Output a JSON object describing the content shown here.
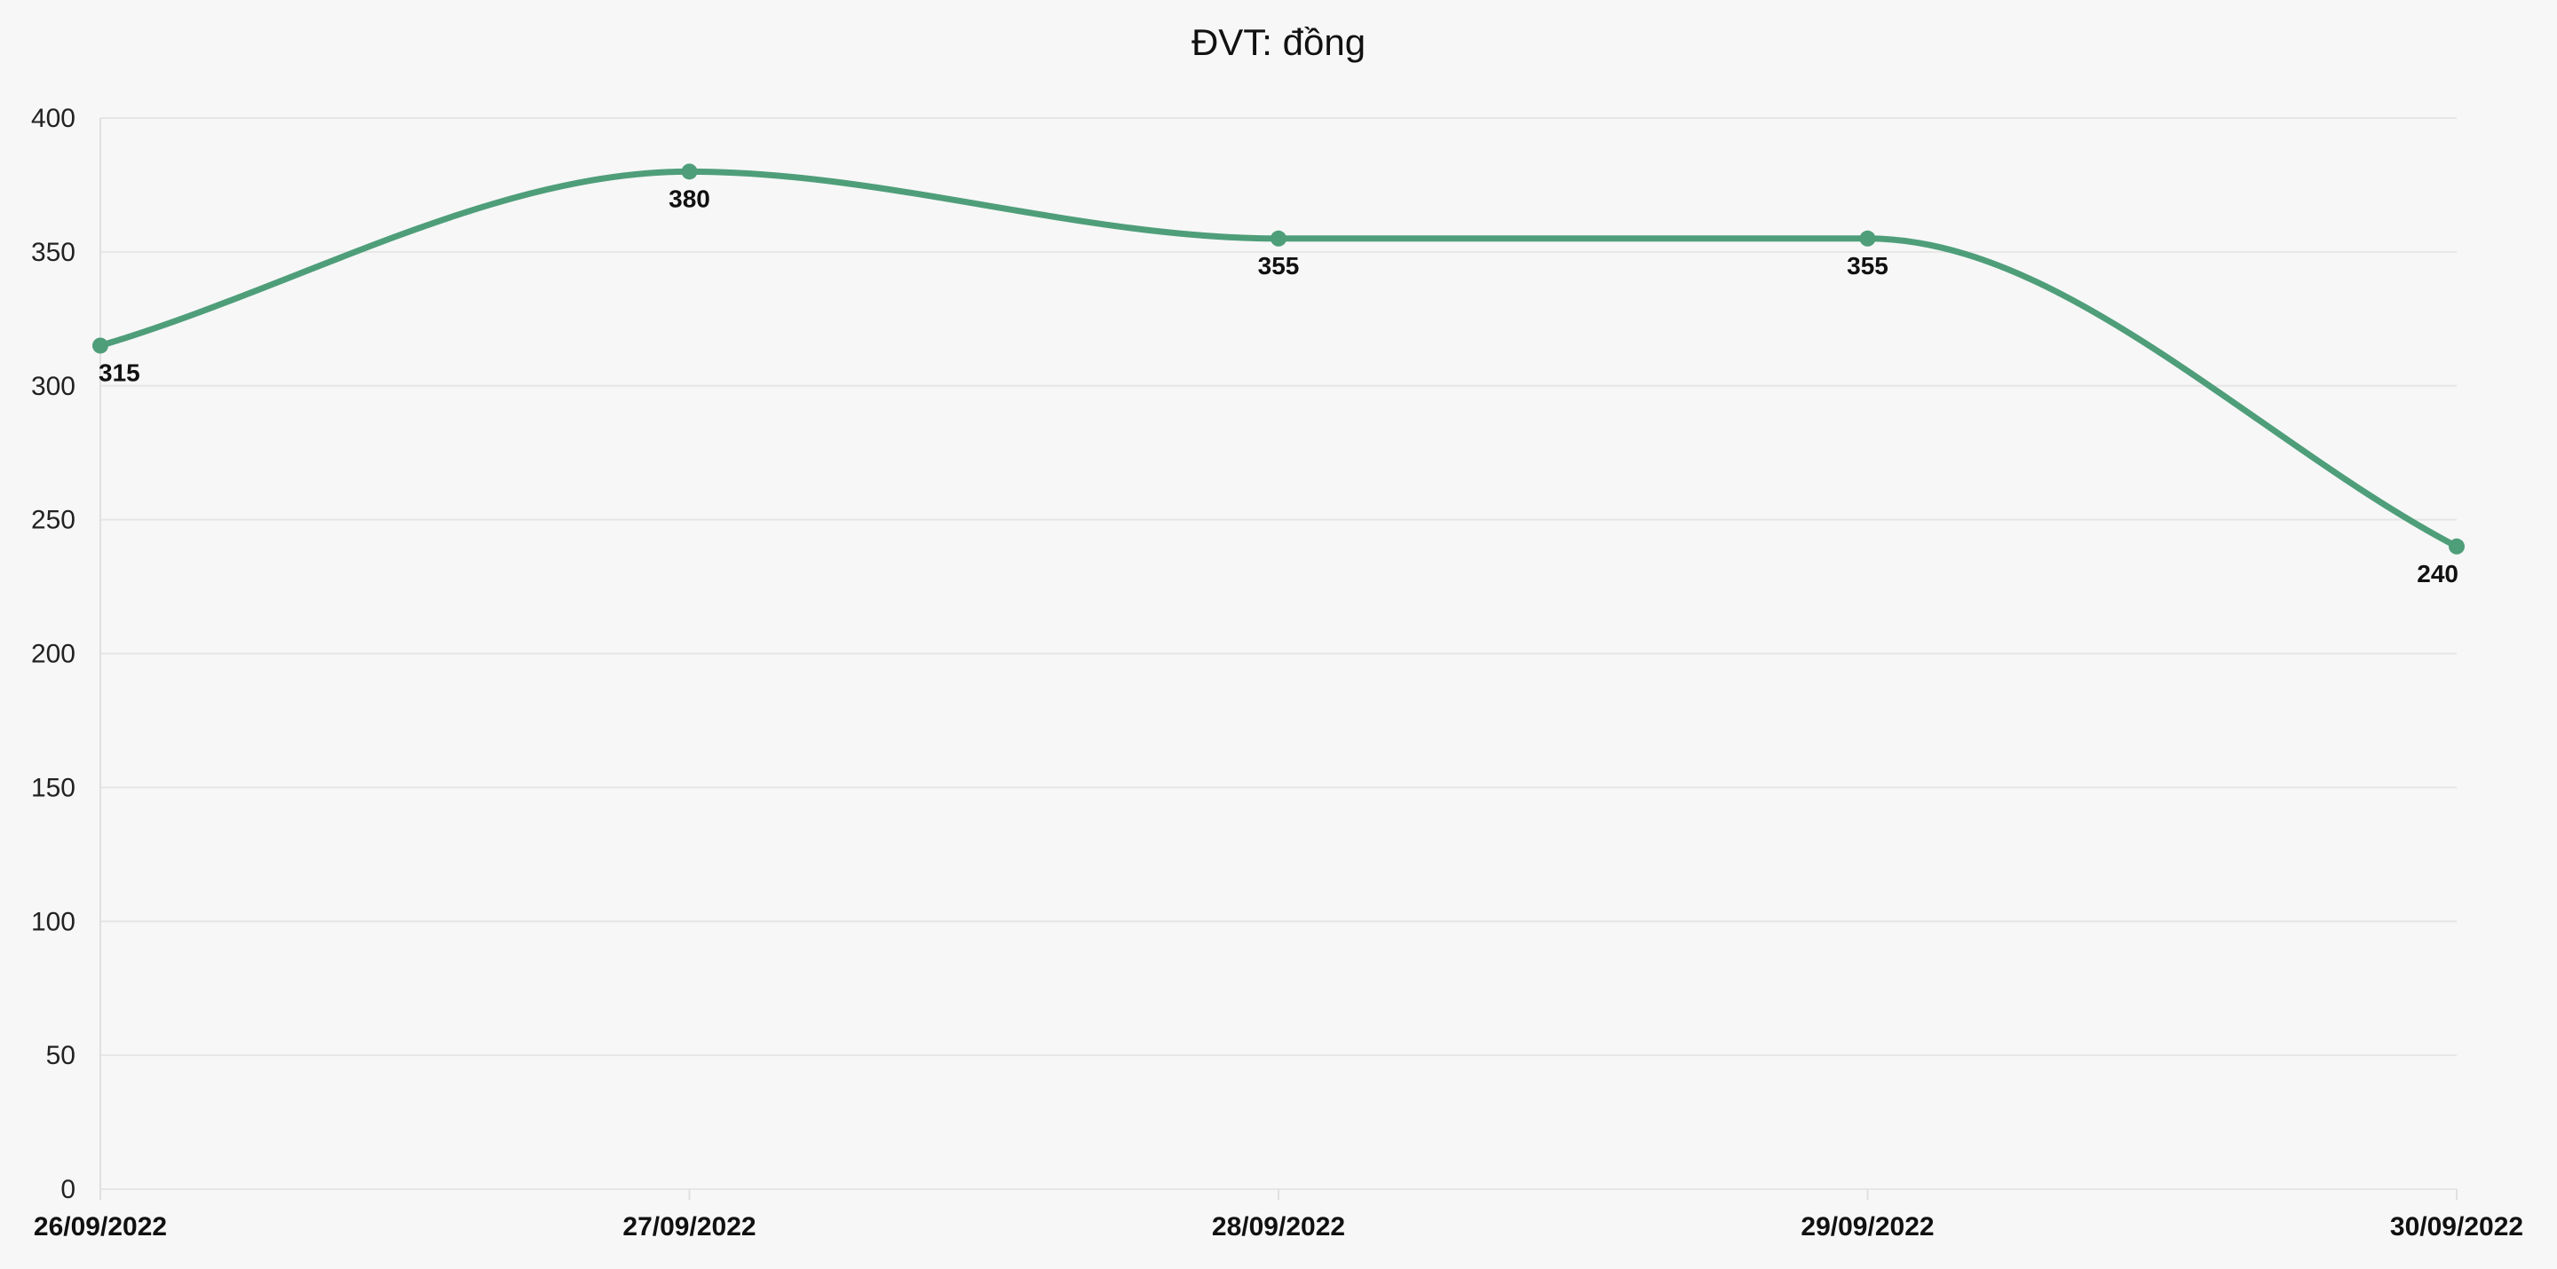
{
  "chart_data": {
    "type": "line",
    "title": "ĐVT: đồng",
    "xlabel": "",
    "ylabel": "",
    "categories": [
      "26/09/2022",
      "27/09/2022",
      "28/09/2022",
      "29/09/2022",
      "30/09/2022"
    ],
    "series": [
      {
        "values": [
          315,
          380,
          355,
          355,
          240
        ],
        "color": "#4f9e7a"
      }
    ],
    "ylim": [
      0,
      400
    ],
    "yticks": [
      0,
      50,
      100,
      150,
      200,
      250,
      300,
      350,
      400
    ],
    "smooth": true,
    "markers": true,
    "data_labels": true,
    "grid": "horizontal",
    "legend": "none"
  }
}
